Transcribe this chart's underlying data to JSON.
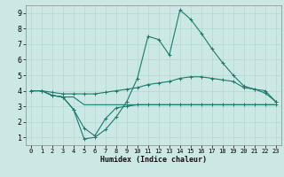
{
  "xlabel": "Humidex (Indice chaleur)",
  "background_color": "#cce8e4",
  "grid_color": "#b0d8d0",
  "line_color": "#1a7a6e",
  "xlim": [
    -0.5,
    23.5
  ],
  "ylim": [
    0.5,
    9.5
  ],
  "xticks": [
    0,
    1,
    2,
    3,
    4,
    5,
    6,
    7,
    8,
    9,
    10,
    11,
    12,
    13,
    14,
    15,
    16,
    17,
    18,
    19,
    20,
    21,
    22,
    23
  ],
  "yticks": [
    1,
    2,
    3,
    4,
    5,
    6,
    7,
    8,
    9
  ],
  "series": {
    "line1": {
      "x": [
        0,
        1,
        2,
        3,
        4,
        5,
        6,
        7,
        8,
        9,
        10,
        11,
        12,
        13,
        14,
        15,
        16,
        17,
        18,
        19,
        20,
        21,
        22,
        23
      ],
      "y": [
        4.0,
        4.0,
        3.7,
        3.6,
        3.6,
        3.1,
        3.1,
        3.1,
        3.1,
        3.1,
        3.1,
        3.1,
        3.1,
        3.1,
        3.1,
        3.1,
        3.1,
        3.1,
        3.1,
        3.1,
        3.1,
        3.1,
        3.1,
        3.1
      ]
    },
    "line2": {
      "x": [
        0,
        1,
        2,
        3,
        4,
        5,
        6,
        7,
        8,
        9,
        10,
        11,
        12,
        13,
        14,
        15,
        16,
        17,
        18,
        19,
        20,
        21,
        22,
        23
      ],
      "y": [
        4.0,
        4.0,
        3.7,
        3.6,
        2.8,
        1.6,
        1.1,
        2.2,
        2.9,
        3.0,
        3.1,
        3.1,
        3.1,
        3.1,
        3.1,
        3.1,
        3.1,
        3.1,
        3.1,
        3.1,
        3.1,
        3.1,
        3.1,
        3.1
      ]
    },
    "line3": {
      "x": [
        0,
        1,
        2,
        3,
        4,
        5,
        6,
        7,
        8,
        9,
        10,
        11,
        12,
        13,
        14,
        15,
        16,
        17,
        18,
        19,
        20,
        21,
        22,
        23
      ],
      "y": [
        4.0,
        4.0,
        3.7,
        3.6,
        2.8,
        0.9,
        1.0,
        1.5,
        2.3,
        3.3,
        4.8,
        7.5,
        7.3,
        6.3,
        9.2,
        8.6,
        7.7,
        6.7,
        5.8,
        5.0,
        4.3,
        4.1,
        3.85,
        3.3
      ]
    },
    "line4": {
      "x": [
        0,
        1,
        2,
        3,
        4,
        5,
        6,
        7,
        8,
        9,
        10,
        11,
        12,
        13,
        14,
        15,
        16,
        17,
        18,
        19,
        20,
        21,
        22,
        23
      ],
      "y": [
        4.0,
        4.0,
        3.9,
        3.8,
        3.8,
        3.8,
        3.8,
        3.9,
        4.0,
        4.1,
        4.2,
        4.4,
        4.5,
        4.6,
        4.8,
        4.9,
        4.9,
        4.8,
        4.7,
        4.6,
        4.2,
        4.1,
        4.0,
        3.3
      ]
    }
  }
}
